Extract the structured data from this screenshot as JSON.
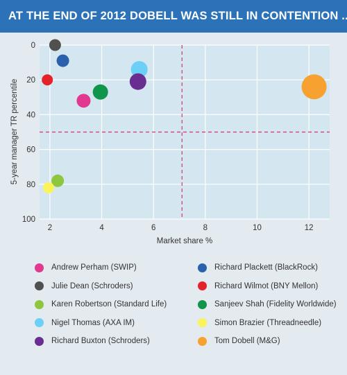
{
  "header": {
    "title": "AT THE END OF 2012 DOBELL WAS STILL IN CONTENTION ...."
  },
  "colors": {
    "banner": "#2b72b8",
    "plot_bg": "#d4e6ef",
    "page_bg": "#e3eaf0",
    "reference_line": "#d6336c"
  },
  "chart_data": {
    "type": "scatter",
    "title": "AT THE END OF 2012 DOBELL WAS STILL IN CONTENTION ....",
    "xlabel": "Market share %",
    "ylabel": "5-year manager TR percentile",
    "xlim": [
      1.6,
      12.8
    ],
    "ylim": [
      0,
      100
    ],
    "y_inverted": true,
    "xticks": [
      2,
      4,
      6,
      8,
      10,
      12
    ],
    "yticks": [
      0,
      20,
      40,
      60,
      80,
      100
    ],
    "grid": true,
    "reference_lines": {
      "x": 7.1,
      "y": 50
    },
    "legend_position": "bottom",
    "series": [
      {
        "name": "Andrew Perham (SWIP)",
        "color": "#e2388f",
        "x": 3.3,
        "y": 32
      },
      {
        "name": "Richard Plackett (BlackRock)",
        "color": "#2b60ad",
        "x": 2.5,
        "y": 9
      },
      {
        "name": "Julie Dean (Schroders)",
        "color": "#505050",
        "x": 2.2,
        "y": 0
      },
      {
        "name": "Richard Wilmot (BNY Mellon)",
        "color": "#e42229",
        "x": 1.9,
        "y": 20
      },
      {
        "name": "Karen Robertson (Standard Life)",
        "color": "#8dc63f",
        "x": 2.3,
        "y": 78
      },
      {
        "name": "Sanjeev Shah (Fidelity Worldwide)",
        "color": "#10964a",
        "x": 3.95,
        "y": 27
      },
      {
        "name": "Nigel Thomas (AXA IM)",
        "color": "#6ccff6",
        "x": 5.45,
        "y": 14
      },
      {
        "name": "Simon Brazier (Threadneedle)",
        "color": "#fbf35a",
        "x": 1.95,
        "y": 82
      },
      {
        "name": "Richard Buxton (Schroders)",
        "color": "#6a2d91",
        "x": 5.4,
        "y": 21
      },
      {
        "name": "Tom Dobell (M&G)",
        "color": "#f7a230",
        "x": 12.2,
        "y": 24
      }
    ]
  }
}
